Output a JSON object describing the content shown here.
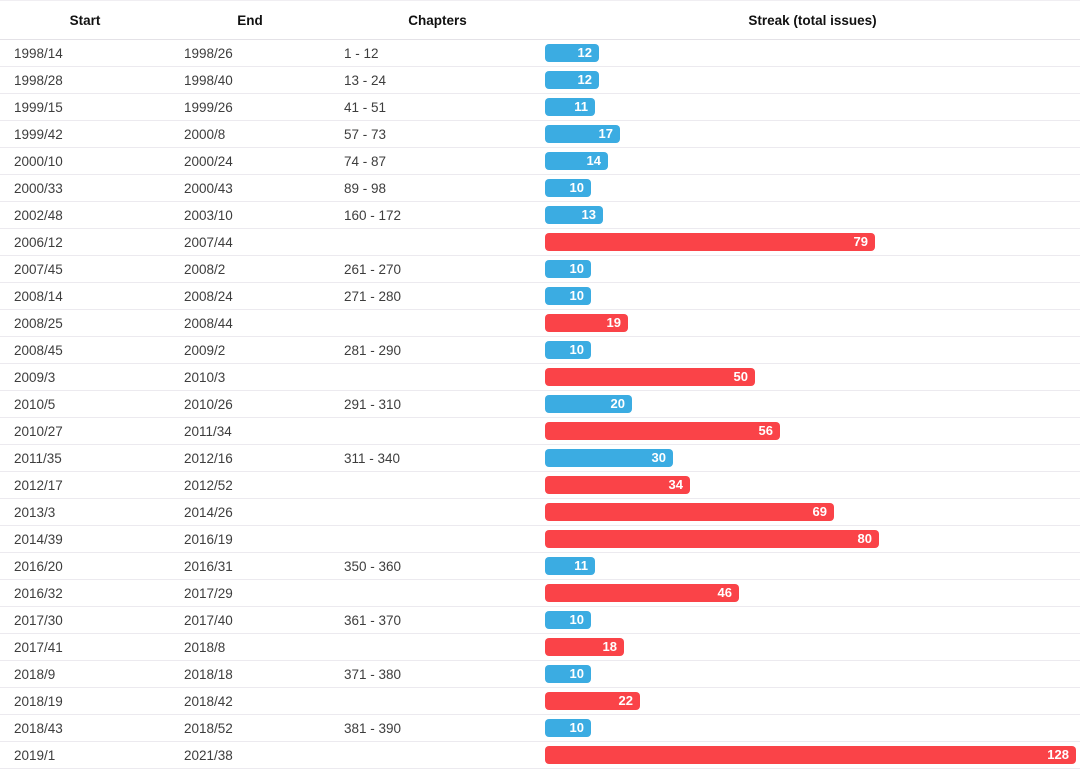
{
  "table": {
    "columns": [
      "Start",
      "End",
      "Chapters",
      "Streak (total issues)"
    ],
    "rows": [
      {
        "start": "1998/14",
        "end": "1998/26",
        "chapters": "1 - 12",
        "streak": 12,
        "kind": "blue"
      },
      {
        "start": "1998/28",
        "end": "1998/40",
        "chapters": "13 - 24",
        "streak": 12,
        "kind": "blue"
      },
      {
        "start": "1999/15",
        "end": "1999/26",
        "chapters": "41 - 51",
        "streak": 11,
        "kind": "blue"
      },
      {
        "start": "1999/42",
        "end": "2000/8",
        "chapters": "57 - 73",
        "streak": 17,
        "kind": "blue"
      },
      {
        "start": "2000/10",
        "end": "2000/24",
        "chapters": "74 - 87",
        "streak": 14,
        "kind": "blue"
      },
      {
        "start": "2000/33",
        "end": "2000/43",
        "chapters": "89 - 98",
        "streak": 10,
        "kind": "blue"
      },
      {
        "start": "2002/48",
        "end": "2003/10",
        "chapters": "160 - 172",
        "streak": 13,
        "kind": "blue"
      },
      {
        "start": "2006/12",
        "end": "2007/44",
        "chapters": "",
        "streak": 79,
        "kind": "red"
      },
      {
        "start": "2007/45",
        "end": "2008/2",
        "chapters": "261 - 270",
        "streak": 10,
        "kind": "blue"
      },
      {
        "start": "2008/14",
        "end": "2008/24",
        "chapters": "271 - 280",
        "streak": 10,
        "kind": "blue"
      },
      {
        "start": "2008/25",
        "end": "2008/44",
        "chapters": "",
        "streak": 19,
        "kind": "red"
      },
      {
        "start": "2008/45",
        "end": "2009/2",
        "chapters": "281 - 290",
        "streak": 10,
        "kind": "blue"
      },
      {
        "start": "2009/3",
        "end": "2010/3",
        "chapters": "",
        "streak": 50,
        "kind": "red"
      },
      {
        "start": "2010/5",
        "end": "2010/26",
        "chapters": "291 - 310",
        "streak": 20,
        "kind": "blue"
      },
      {
        "start": "2010/27",
        "end": "2011/34",
        "chapters": "",
        "streak": 56,
        "kind": "red"
      },
      {
        "start": "2011/35",
        "end": "2012/16",
        "chapters": "311 - 340",
        "streak": 30,
        "kind": "blue"
      },
      {
        "start": "2012/17",
        "end": "2012/52",
        "chapters": "",
        "streak": 34,
        "kind": "red"
      },
      {
        "start": "2013/3",
        "end": "2014/26",
        "chapters": "",
        "streak": 69,
        "kind": "red"
      },
      {
        "start": "2014/39",
        "end": "2016/19",
        "chapters": "",
        "streak": 80,
        "kind": "red"
      },
      {
        "start": "2016/20",
        "end": "2016/31",
        "chapters": "350 - 360",
        "streak": 11,
        "kind": "blue"
      },
      {
        "start": "2016/32",
        "end": "2017/29",
        "chapters": "",
        "streak": 46,
        "kind": "red"
      },
      {
        "start": "2017/30",
        "end": "2017/40",
        "chapters": "361 - 370",
        "streak": 10,
        "kind": "blue"
      },
      {
        "start": "2017/41",
        "end": "2018/8",
        "chapters": "",
        "streak": 18,
        "kind": "red"
      },
      {
        "start": "2018/9",
        "end": "2018/18",
        "chapters": "371 - 380",
        "streak": 10,
        "kind": "blue"
      },
      {
        "start": "2018/19",
        "end": "2018/42",
        "chapters": "",
        "streak": 22,
        "kind": "red"
      },
      {
        "start": "2018/43",
        "end": "2018/52",
        "chapters": "381 - 390",
        "streak": 10,
        "kind": "blue"
      },
      {
        "start": "2019/1",
        "end": "2021/38",
        "chapters": "",
        "streak": 128,
        "kind": "red"
      }
    ]
  },
  "colors": {
    "blue": "#3bace2",
    "red": "#fa4348",
    "bar_label": "#ffffff",
    "row_border": "#eceaef",
    "text": "#3d3d3d",
    "header_text": "#111111"
  },
  "chart_data": {
    "type": "bar",
    "orientation": "horizontal",
    "title": "Streak (total issues)",
    "xlabel": "",
    "ylabel": "",
    "xlim": [
      0,
      128
    ],
    "grid": false,
    "legend": null,
    "categories": [
      "1998/14 – 1998/26",
      "1998/28 – 1998/40",
      "1999/15 – 1999/26",
      "1999/42 – 2000/8",
      "2000/10 – 2000/24",
      "2000/33 – 2000/43",
      "2002/48 – 2003/10",
      "2006/12 – 2007/44",
      "2007/45 – 2008/2",
      "2008/14 – 2008/24",
      "2008/25 – 2008/44",
      "2008/45 – 2009/2",
      "2009/3 – 2010/3",
      "2010/5 – 2010/26",
      "2010/27 – 2011/34",
      "2011/35 – 2012/16",
      "2012/17 – 2012/52",
      "2013/3 – 2014/26",
      "2014/39 – 2016/19",
      "2016/20 – 2016/31",
      "2016/32 – 2017/29",
      "2017/30 – 2017/40",
      "2017/41 – 2018/8",
      "2018/9 – 2018/18",
      "2018/19 – 2018/42",
      "2018/43 – 2018/52",
      "2019/1 – 2021/38"
    ],
    "values": [
      12,
      12,
      11,
      17,
      14,
      10,
      13,
      79,
      10,
      10,
      19,
      10,
      50,
      20,
      56,
      30,
      34,
      69,
      80,
      11,
      46,
      10,
      18,
      10,
      22,
      10,
      128
    ],
    "bar_colors": [
      "blue",
      "blue",
      "blue",
      "blue",
      "blue",
      "blue",
      "blue",
      "red",
      "blue",
      "blue",
      "red",
      "blue",
      "red",
      "blue",
      "red",
      "blue",
      "red",
      "red",
      "red",
      "blue",
      "red",
      "blue",
      "red",
      "blue",
      "red",
      "blue",
      "red"
    ],
    "data_labels": true
  }
}
